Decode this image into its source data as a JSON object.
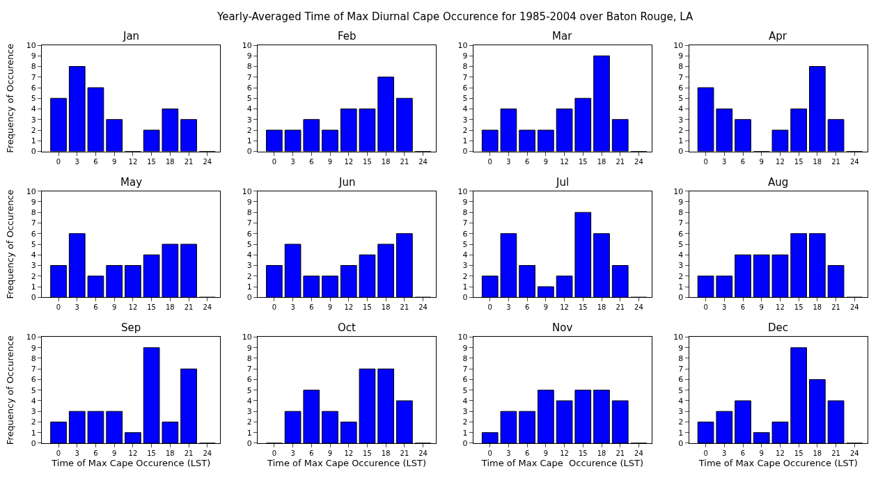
{
  "chart_data": [
    {
      "type": "bar",
      "title": "Jan",
      "annotations": [
        "Yearly-Averaged Time of Max Diurnal Cape Occurence for 1985-2004 over Baton Rouge, LA"
      ],
      "ylabel": "Frequency of Occurence",
      "categories": [
        "0",
        "3",
        "6",
        "9",
        "12",
        "15",
        "18",
        "21",
        "24"
      ],
      "values": [
        5,
        8,
        6,
        3,
        0,
        2,
        4,
        3,
        0
      ],
      "color": "#0000ff",
      "ylim": [
        0,
        10
      ],
      "yticks": [
        0,
        1,
        2,
        3,
        4,
        5,
        6,
        7,
        8,
        9,
        10
      ]
    },
    {
      "type": "bar",
      "title": "Feb",
      "categories": [
        "0",
        "3",
        "6",
        "9",
        "12",
        "15",
        "18",
        "21",
        "24"
      ],
      "values": [
        2,
        2,
        3,
        2,
        4,
        4,
        7,
        5,
        0
      ],
      "color": "#0000ff",
      "ylim": [
        0,
        10
      ],
      "yticks": [
        0,
        1,
        2,
        3,
        4,
        5,
        6,
        7,
        8,
        9,
        10
      ]
    },
    {
      "type": "bar",
      "title": "Mar",
      "categories": [
        "0",
        "3",
        "6",
        "9",
        "12",
        "15",
        "18",
        "21",
        "24"
      ],
      "values": [
        2,
        4,
        2,
        2,
        4,
        5,
        9,
        3,
        0
      ],
      "color": "#0000ff",
      "ylim": [
        0,
        10
      ],
      "yticks": [
        0,
        1,
        2,
        3,
        4,
        5,
        6,
        7,
        8,
        9,
        10
      ]
    },
    {
      "type": "bar",
      "title": "Apr",
      "categories": [
        "0",
        "3",
        "6",
        "9",
        "12",
        "15",
        "18",
        "21",
        "24"
      ],
      "values": [
        6,
        4,
        3,
        0,
        2,
        4,
        8,
        3,
        0
      ],
      "color": "#0000ff",
      "ylim": [
        0,
        10
      ],
      "yticks": [
        0,
        1,
        2,
        3,
        4,
        5,
        6,
        7,
        8,
        9,
        10
      ]
    },
    {
      "type": "bar",
      "title": "May",
      "ylabel": "Frequency of Occurence",
      "categories": [
        "0",
        "3",
        "6",
        "9",
        "12",
        "15",
        "18",
        "21",
        "24"
      ],
      "values": [
        3,
        6,
        2,
        3,
        3,
        4,
        5,
        5,
        0
      ],
      "color": "#0000ff",
      "ylim": [
        0,
        10
      ],
      "yticks": [
        0,
        1,
        2,
        3,
        4,
        5,
        6,
        7,
        8,
        9,
        10
      ]
    },
    {
      "type": "bar",
      "title": "Jun",
      "categories": [
        "0",
        "3",
        "6",
        "9",
        "12",
        "15",
        "18",
        "21",
        "24"
      ],
      "values": [
        3,
        5,
        2,
        2,
        3,
        4,
        5,
        6,
        0
      ],
      "color": "#0000ff",
      "ylim": [
        0,
        10
      ],
      "yticks": [
        0,
        1,
        2,
        3,
        4,
        5,
        6,
        7,
        8,
        9,
        10
      ]
    },
    {
      "type": "bar",
      "title": "Jul",
      "categories": [
        "0",
        "3",
        "6",
        "9",
        "12",
        "15",
        "18",
        "21",
        "24"
      ],
      "values": [
        2,
        6,
        3,
        1,
        2,
        8,
        6,
        3,
        0
      ],
      "color": "#0000ff",
      "ylim": [
        0,
        10
      ],
      "yticks": [
        0,
        1,
        2,
        3,
        4,
        5,
        6,
        7,
        8,
        9,
        10
      ]
    },
    {
      "type": "bar",
      "title": "Aug",
      "categories": [
        "0",
        "3",
        "6",
        "9",
        "12",
        "15",
        "18",
        "21",
        "24"
      ],
      "values": [
        2,
        2,
        4,
        4,
        4,
        6,
        6,
        3,
        0
      ],
      "color": "#0000ff",
      "ylim": [
        0,
        10
      ],
      "yticks": [
        0,
        1,
        2,
        3,
        4,
        5,
        6,
        7,
        8,
        9,
        10
      ]
    },
    {
      "type": "bar",
      "title": "Sep",
      "xlabel": "Time of Max Cape Occurence (LST)",
      "ylabel": "Frequency of Occurence",
      "categories": [
        "0",
        "3",
        "6",
        "9",
        "12",
        "15",
        "18",
        "21",
        "24"
      ],
      "values": [
        2,
        3,
        3,
        3,
        1,
        9,
        2,
        7,
        0
      ],
      "color": "#0000ff",
      "ylim": [
        0,
        10
      ],
      "yticks": [
        0,
        1,
        2,
        3,
        4,
        5,
        6,
        7,
        8,
        9,
        10
      ]
    },
    {
      "type": "bar",
      "title": "Oct",
      "xlabel": "Time of Max Cape Occurence (LST)",
      "categories": [
        "0",
        "3",
        "6",
        "9",
        "12",
        "15",
        "18",
        "21",
        "24"
      ],
      "values": [
        0,
        3,
        5,
        3,
        2,
        7,
        7,
        4,
        0
      ],
      "color": "#0000ff",
      "ylim": [
        0,
        10
      ],
      "yticks": [
        0,
        1,
        2,
        3,
        4,
        5,
        6,
        7,
        8,
        9,
        10
      ]
    },
    {
      "type": "bar",
      "title": "Nov",
      "xlabel": "Time of Max Cape  Occurence (LST)",
      "categories": [
        "0",
        "3",
        "6",
        "9",
        "12",
        "15",
        "18",
        "21",
        "24"
      ],
      "values": [
        1,
        3,
        3,
        5,
        4,
        5,
        5,
        4,
        0
      ],
      "color": "#0000ff",
      "ylim": [
        0,
        10
      ],
      "yticks": [
        0,
        1,
        2,
        3,
        4,
        5,
        6,
        7,
        8,
        9,
        10
      ]
    },
    {
      "type": "bar",
      "title": "Dec",
      "xlabel": "Time of Max Cape Occurence (LST)",
      "categories": [
        "0",
        "3",
        "6",
        "9",
        "12",
        "15",
        "18",
        "21",
        "24"
      ],
      "values": [
        2,
        3,
        4,
        1,
        2,
        9,
        6,
        4,
        0
      ],
      "color": "#0000ff",
      "ylim": [
        0,
        10
      ],
      "yticks": [
        0,
        1,
        2,
        3,
        4,
        5,
        6,
        7,
        8,
        9,
        10
      ]
    }
  ]
}
